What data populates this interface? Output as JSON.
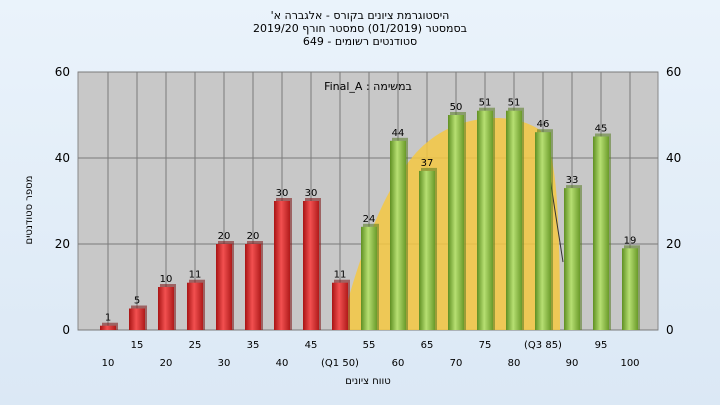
{
  "chart_data": {
    "type": "bar",
    "title_lines": [
      "'היסטוגרמת ציונים בקורס - אלגברה א",
      "בסמסטר  (01/2019)  סמסטר חורף 2019/20",
      "סטודנטים רשומים - 649"
    ],
    "annotation": "Final_A : במשימה",
    "ylabel": "מספר סטודנטים",
    "xlabel": "טווח ציונים",
    "ylim": [
      0,
      60
    ],
    "yticks": [
      0,
      20,
      40,
      60
    ],
    "grid": true,
    "categories": [
      "10",
      "15",
      "20",
      "25",
      "30",
      "35",
      "40",
      "45",
      "(Q1 50)",
      "55",
      "60",
      "65",
      "70",
      "75",
      "80",
      "(Q3 85)",
      "90",
      "95",
      "100"
    ],
    "values": [
      1,
      5,
      10,
      11,
      20,
      20,
      30,
      30,
      11,
      24,
      44,
      37,
      50,
      51,
      51,
      46,
      33,
      45,
      19
    ],
    "bar_colors": [
      "#e03030",
      "#e03030",
      "#e03030",
      "#e03030",
      "#e03030",
      "#e03030",
      "#e03030",
      "#e03030",
      "#e03030",
      "#8fc24a",
      "#8fc24a",
      "#8fc24a",
      "#8fc24a",
      "#8fc24a",
      "#8fc24a",
      "#8fc24a",
      "#8fc24a",
      "#8fc24a",
      "#8fc24a"
    ],
    "colors": {
      "fail": "#e03030",
      "pass": "#8fc24a",
      "distribution_curve": "#f5c842",
      "plot_background": "#c8c8c8"
    }
  }
}
